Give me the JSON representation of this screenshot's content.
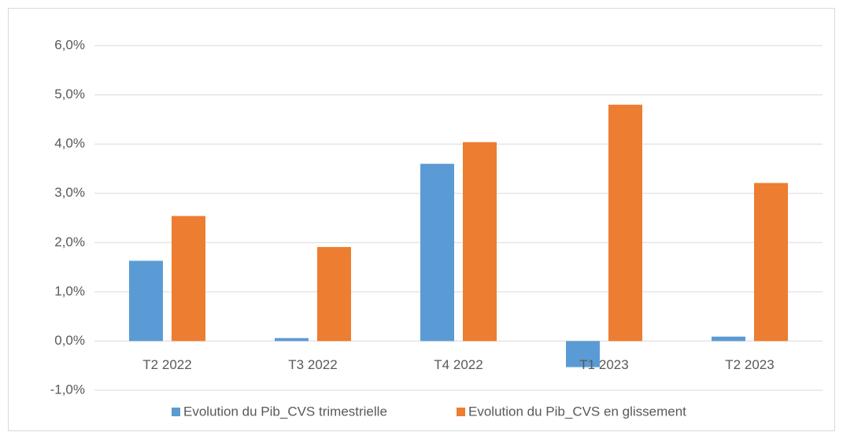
{
  "chart_data": {
    "type": "bar",
    "categories": [
      "T2 2022",
      "T3 2022",
      "T4 2022",
      "T1 2023",
      "T2 2023"
    ],
    "series": [
      {
        "name": "Evolution du Pib_CVS trimestrielle",
        "color": "#5b9bd5",
        "values": [
          1.63,
          0.06,
          3.6,
          -0.53,
          0.09
        ]
      },
      {
        "name": "Evolution du Pib_CVS en glissement",
        "color": "#ed7d31",
        "values": [
          2.54,
          1.91,
          4.04,
          4.8,
          3.21
        ]
      }
    ],
    "ylim": [
      -1,
      6
    ],
    "yticks": [
      {
        "value": -1,
        "label": "-1,0%"
      },
      {
        "value": 0,
        "label": "0,0%"
      },
      {
        "value": 1,
        "label": "1,0%"
      },
      {
        "value": 2,
        "label": "2,0%"
      },
      {
        "value": 3,
        "label": "3,0%"
      },
      {
        "value": 4,
        "label": "4,0%"
      },
      {
        "value": 5,
        "label": "5,0%"
      },
      {
        "value": 6,
        "label": "6,0%"
      }
    ],
    "grid": true,
    "legend": "bottom"
  }
}
